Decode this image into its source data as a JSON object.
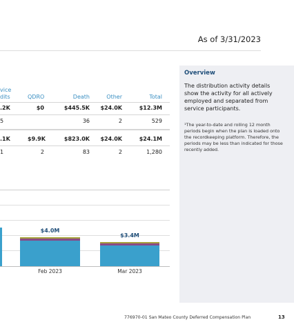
{
  "header": {
    "as_of": "As of 3/31/2023"
  },
  "table": {
    "partial_header": [
      "vice",
      "dits"
    ],
    "columns": [
      "QDRO",
      "Death",
      "Other",
      "Total"
    ],
    "rows": [
      {
        "partial": ".2K",
        "cells": [
          "$0",
          "$445.5K",
          "$24.0K",
          "$12.3M"
        ],
        "bold": true
      },
      {
        "partial": "5",
        "cells": [
          "",
          "36",
          "2",
          "529"
        ],
        "bold": false
      },
      {
        "partial": ".1K",
        "cells": [
          "$9.9K",
          "$823.0K",
          "$24.0K",
          "$24.1M"
        ],
        "bold": true
      },
      {
        "partial": "1",
        "cells": [
          "2",
          "83",
          "2",
          "1,280"
        ],
        "bold": false
      }
    ]
  },
  "chart_data": {
    "type": "bar",
    "categories": [
      "Feb 2023",
      "Mar 2023"
    ],
    "totals": [
      4.0,
      3.4
    ],
    "total_labels": [
      "$4.0M",
      "$3.4M"
    ],
    "series": [
      {
        "values": [
          3.65,
          3.0
        ],
        "color": "#3aa0cc"
      },
      {
        "values": [
          0.3,
          0.25
        ],
        "color": "#8a4a86"
      },
      {
        "values": [
          0.05,
          0.15
        ],
        "color": "#a6a23c"
      }
    ],
    "colors": {
      "blue": "#3aa0cc",
      "purple": "#8a4a86",
      "olive": "#a6a23c",
      "label": "#1f4e79"
    }
  },
  "sidebar": {
    "title": "Overview",
    "body": "The distribution activity details show the activity for all actively employed and separated from service participants.",
    "footnote": "¹The year-to-date and rolling 12 month periods begin when the plan is loaded onto the recordkeeping platform. Therefore, the periods may be less than indicated for those recently added."
  },
  "footer": {
    "text": "776970-01 San Mateo County Deferred Compensation Plan",
    "page": "13"
  }
}
